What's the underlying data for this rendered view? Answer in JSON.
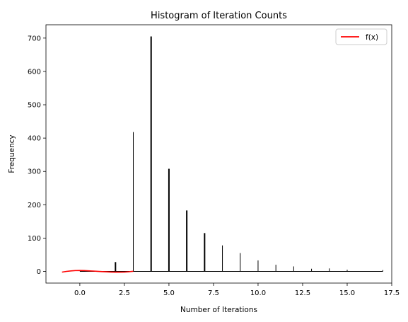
{
  "chart_data": {
    "type": "bar",
    "title": "Histogram of Iteration Counts",
    "xlabel": "Number of Iterations",
    "ylabel": "Frequency",
    "xlim": [
      -1.9,
      17.5
    ],
    "ylim": [
      -35,
      740
    ],
    "xticks": [
      0.0,
      2.5,
      5.0,
      7.5,
      10.0,
      12.5,
      15.0,
      17.5
    ],
    "xtick_labels": [
      "0.0",
      "2.5",
      "5.0",
      "7.5",
      "10.0",
      "12.5",
      "15.0",
      "17.5"
    ],
    "yticks": [
      0,
      100,
      200,
      300,
      400,
      500,
      600,
      700
    ],
    "ytick_labels": [
      "0",
      "100",
      "200",
      "300",
      "400",
      "500",
      "600",
      "700"
    ],
    "grid": false,
    "legend": {
      "position": "top-right",
      "entries": [
        {
          "label": "f(x)",
          "color": "#ff0000"
        }
      ]
    },
    "histogram": {
      "x": [
        0,
        1,
        2,
        3,
        4,
        5,
        6,
        7,
        8,
        9,
        10,
        11,
        12,
        13,
        14,
        15,
        16,
        17
      ],
      "values": [
        0,
        0,
        28,
        418,
        705,
        308,
        183,
        115,
        78,
        55,
        33,
        20,
        15,
        8,
        9,
        5,
        0,
        4
      ],
      "line_widths": [
        1,
        1,
        2,
        1,
        2,
        2,
        2,
        2,
        1,
        1,
        1,
        1,
        1,
        1,
        1,
        1,
        1,
        1
      ],
      "baseline_range": [
        0,
        17
      ],
      "color": "#000000"
    },
    "series": [
      {
        "name": "f(x)",
        "color": "#ff0000",
        "x": [
          -1.0,
          -0.75,
          -0.5,
          -0.25,
          0.0,
          0.25,
          0.5,
          0.75,
          1.0,
          1.25,
          1.5,
          1.75,
          2.0,
          2.25,
          2.5,
          2.75,
          3.0
        ],
        "y": [
          -2,
          0,
          1.5,
          2.5,
          2.8,
          2.5,
          1.8,
          1.0,
          0.2,
          -0.5,
          -1.2,
          -1.8,
          -2.2,
          -2.3,
          -2.0,
          -1.0,
          0.5
        ]
      }
    ]
  },
  "colors": {
    "axes": "#000000",
    "hist": "#000000",
    "line": "#ff0000",
    "legend_border": "#cccccc"
  }
}
